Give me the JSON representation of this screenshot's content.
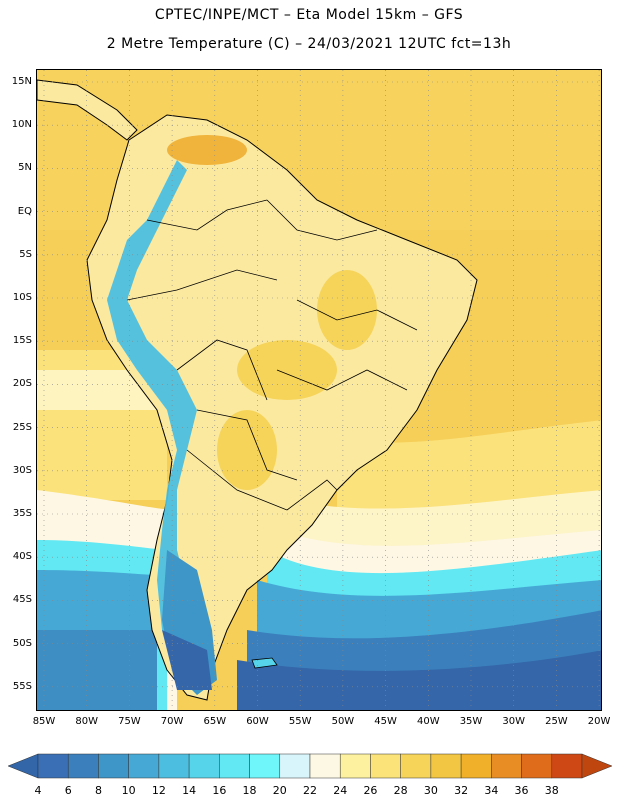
{
  "title_line1": "CPTEC/INPE/MCT –  Eta Model 15km – GFS",
  "title_line2": "2 Metre Temperature (C) – 24/03/2021 12UTC fct=13h",
  "lat_labels": [
    "15N",
    "10N",
    "5N",
    "EQ",
    "5S",
    "10S",
    "15S",
    "20S",
    "25S",
    "30S",
    "35S",
    "40S",
    "45S",
    "50S",
    "55S"
  ],
  "lon_labels": [
    "85W",
    "80W",
    "75W",
    "70W",
    "65W",
    "60W",
    "55W",
    "50W",
    "45W",
    "40W",
    "35W",
    "30W",
    "25W",
    "20W"
  ],
  "colorbar": {
    "labels": [
      "4",
      "6",
      "8",
      "10",
      "12",
      "14",
      "16",
      "18",
      "20",
      "22",
      "24",
      "26",
      "28",
      "30",
      "32",
      "34",
      "36",
      "38"
    ],
    "colors": [
      "#3a6fb5",
      "#3b80bd",
      "#3e95c8",
      "#46a9d5",
      "#4cbfe0",
      "#55d4ea",
      "#62e8f2",
      "#6ff6fb",
      "#d7f5fb",
      "#fdf8e4",
      "#fdf1a0",
      "#fbe37a",
      "#f6d45a",
      "#f2c542",
      "#f0b02a",
      "#e78d24",
      "#de6c1a",
      "#cd4814"
    ],
    "low_cap_color": "#3266a8",
    "high_cap_color": "#c0460f"
  },
  "colors": {
    "ocean_warm": "#f5cf58",
    "ocean_mild": "#fbe47c",
    "ocean_cool": "#fdf7e4",
    "land_warm": "#fbe9a0",
    "land_hot": "#f0b43c",
    "andes": "#4cbfe0",
    "south_cold": "#3466a9",
    "south_mid": "#3e95c8",
    "south_light": "#55d4ea"
  }
}
